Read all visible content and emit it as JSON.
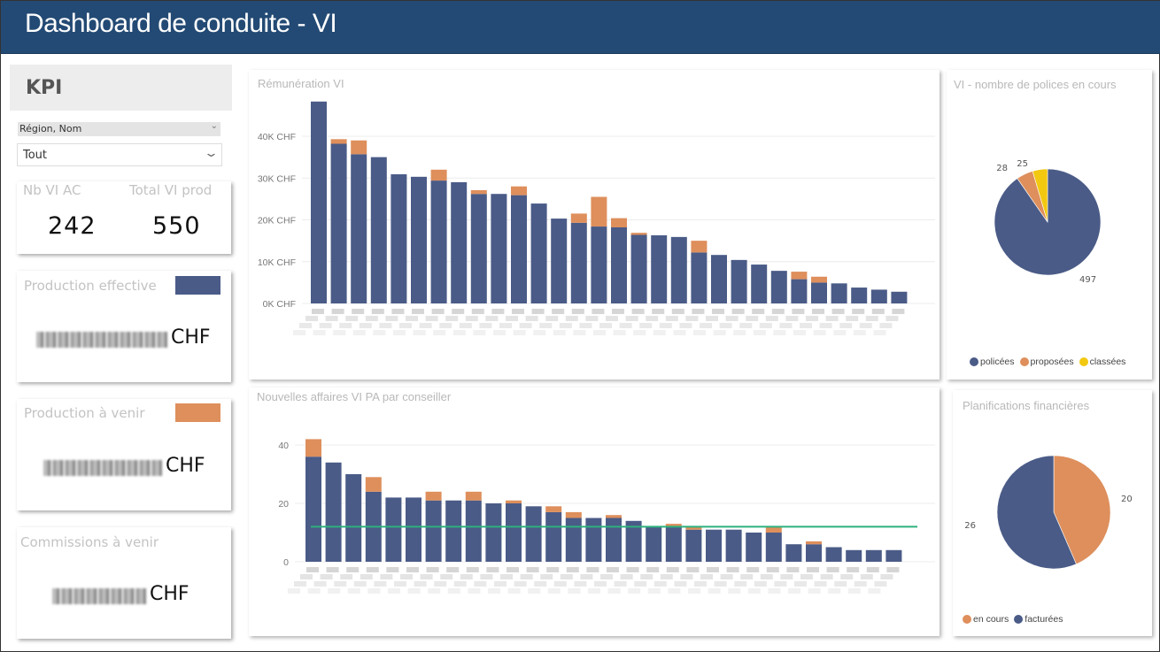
{
  "header": {
    "title": "Dashboard de conduite - VI"
  },
  "sidebar": {
    "kpi_title": "KPI",
    "slicer_label": "Région, Nom",
    "slicer_value": "Tout",
    "cards": {
      "nb_vi_ac_label": "Nb VI AC",
      "nb_vi_ac_value": "242",
      "total_vi_prod_label": "Total VI prod",
      "total_vi_prod_value": "550",
      "prod_eff_label": "Production effective",
      "prod_eff_unit": "CHF",
      "prod_venir_label": "Production à venir",
      "prod_venir_unit": "CHF",
      "comm_venir_label": "Commissions à venir",
      "comm_venir_unit": "CHF"
    }
  },
  "colors": {
    "blue": "#4a5b87",
    "orange": "#de8f5c",
    "yellow": "#f2c811",
    "line": "#2db07e",
    "header": "#234a74"
  },
  "chart_data": [
    {
      "type": "bar",
      "stacked": true,
      "title": "Rémunération VI",
      "ylim": [
        0,
        50
      ],
      "yticks": [
        "0K CHF",
        "10K CHF",
        "20K CHF",
        "30K CHF",
        "40K CHF"
      ],
      "ytick_values": [
        0,
        10,
        20,
        30,
        40
      ],
      "series": [
        {
          "name": "effective",
          "values": [
            48.3,
            38.2,
            35.7,
            35.0,
            30.9,
            30.3,
            29.4,
            29.0,
            26.2,
            26.2,
            25.9,
            23.9,
            20.3,
            19.3,
            18.4,
            18.2,
            16.4,
            16.3,
            15.9,
            12.2,
            11.6,
            10.4,
            9.3,
            7.8,
            5.8,
            5.0,
            4.8,
            3.8,
            3.3,
            2.8
          ]
        },
        {
          "name": "à venir",
          "values": [
            0,
            1.1,
            3.3,
            0,
            0,
            0,
            2.6,
            0,
            0.9,
            0,
            2.1,
            0,
            0,
            2.2,
            7.1,
            2.2,
            0.5,
            0,
            0,
            2.8,
            0,
            0,
            0,
            0,
            1.8,
            1.4,
            0,
            0,
            0,
            0
          ]
        }
      ]
    },
    {
      "type": "bar",
      "stacked": true,
      "title": "Nouvelles affaires VI PA par conseiller",
      "ylim": [
        0,
        45
      ],
      "yticks": [
        "0",
        "20",
        "40"
      ],
      "ytick_values": [
        0,
        20,
        40
      ],
      "reference_line": 12,
      "series": [
        {
          "name": "effective",
          "values": [
            36,
            34,
            30,
            24,
            22,
            22,
            21,
            21,
            21,
            20,
            20,
            19,
            17,
            15,
            15,
            15,
            14,
            12,
            12,
            11,
            11,
            11,
            10,
            10,
            6,
            6,
            5,
            4,
            4,
            4
          ]
        },
        {
          "name": "à venir",
          "values": [
            6,
            0,
            0,
            5,
            0,
            0,
            3,
            0,
            3,
            0,
            1,
            0,
            2,
            2,
            0,
            1,
            0,
            0,
            1,
            1,
            0,
            0,
            0,
            2,
            0,
            1,
            0,
            0,
            0,
            0
          ]
        }
      ]
    },
    {
      "type": "pie",
      "title": "VI - nombre de polices en cours",
      "labels": [
        "policées",
        "proposées",
        "classées"
      ],
      "values": [
        497,
        28,
        25
      ],
      "value_labels": [
        "497",
        "28",
        "25"
      ]
    },
    {
      "type": "pie",
      "title": "Planifications financières",
      "labels": [
        "en cours",
        "facturées"
      ],
      "values": [
        20,
        26
      ],
      "value_labels": [
        "20",
        "26"
      ]
    }
  ]
}
